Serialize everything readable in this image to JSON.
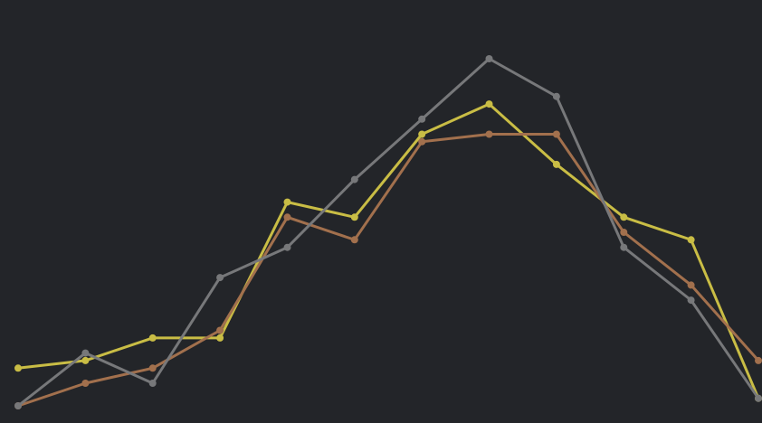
{
  "chart_data": {
    "type": "line",
    "x": [
      1,
      2,
      3,
      4,
      5,
      6,
      7,
      8,
      9,
      10,
      11,
      12
    ],
    "xlim": [
      1,
      12
    ],
    "ylim": [
      0,
      23
    ],
    "grid": false,
    "background_color": "#232529",
    "series": [
      {
        "color": "#c9bd45",
        "values": [
          2.5,
          3,
          4.5,
          4.5,
          13.5,
          12.5,
          18,
          20,
          16,
          12.5,
          11,
          0.5
        ]
      },
      {
        "color": "#a2704d",
        "values": [
          0,
          1.5,
          2.5,
          5,
          12.5,
          11,
          17.5,
          18,
          18,
          11.5,
          8,
          3
        ]
      },
      {
        "color": "#77787a",
        "values": [
          0,
          3.5,
          1.5,
          8.5,
          10.5,
          15,
          19,
          23,
          20.5,
          10.5,
          7,
          0.5
        ]
      }
    ]
  }
}
